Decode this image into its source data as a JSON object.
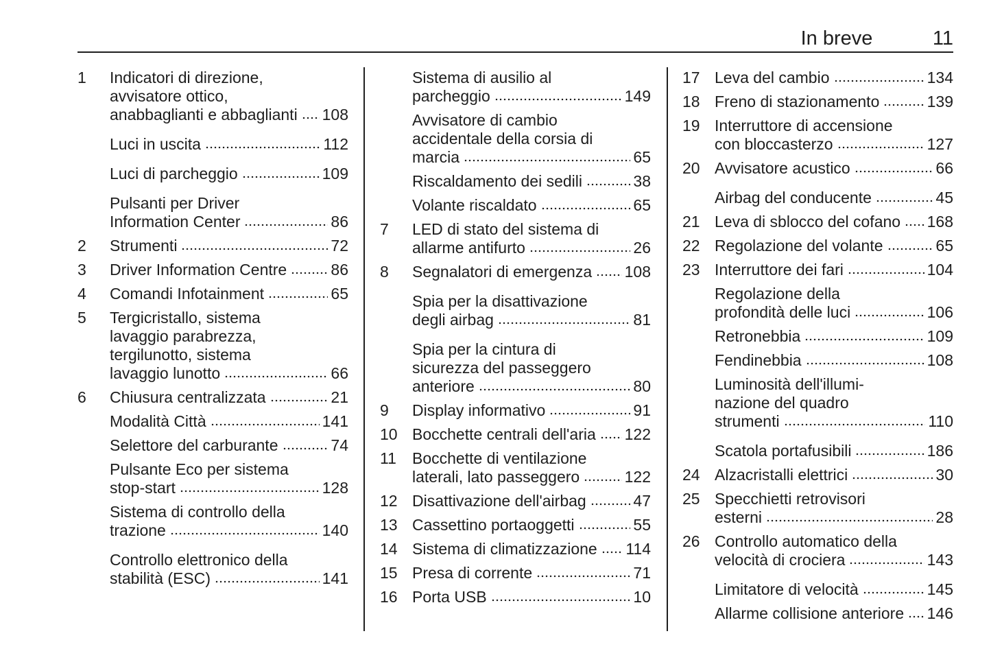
{
  "header": {
    "section": "In breve",
    "page": "11"
  },
  "columns": [
    {
      "entries": [
        {
          "num": "1",
          "lines": [
            "Indicatori di direzione,",
            "avvisatore ottico,",
            "anabbaglianti e abbaglianti"
          ],
          "page": "108"
        },
        {
          "lines": [
            "Luci in uscita"
          ],
          "page": "112"
        },
        {
          "lines": [
            "Luci di parcheggio"
          ],
          "page": "109"
        },
        {
          "lines": [
            "Pulsanti per Driver",
            "Information Center"
          ],
          "page": "86"
        },
        {
          "num": "2",
          "lines": [
            "Strumenti"
          ],
          "page": "72"
        },
        {
          "num": "3",
          "lines": [
            "Driver Information Centre"
          ],
          "page": "86"
        },
        {
          "num": "4",
          "lines": [
            "Comandi Infotainment"
          ],
          "page": "65"
        },
        {
          "num": "5",
          "lines": [
            "Tergicristallo, sistema",
            "lavaggio parabrezza,",
            "tergilunotto, sistema",
            "lavaggio lunotto"
          ],
          "page": "66"
        },
        {
          "num": "6",
          "lines": [
            "Chiusura centralizzata"
          ],
          "page": "21"
        },
        {
          "lines": [
            "Modalità Città"
          ],
          "page": "141"
        },
        {
          "lines": [
            "Selettore del carburante"
          ],
          "page": "74"
        },
        {
          "lines": [
            "Pulsante Eco per sistema",
            "stop-start"
          ],
          "page": "128"
        },
        {
          "lines": [
            "Sistema di controllo della",
            "trazione"
          ],
          "page": "140"
        },
        {
          "lines": [
            "Controllo elettronico della",
            "stabilità (ESC)"
          ],
          "page": "141"
        }
      ]
    },
    {
      "entries": [
        {
          "lines": [
            "Sistema di ausilio al",
            "parcheggio"
          ],
          "page": "149"
        },
        {
          "lines": [
            "Avvisatore di cambio",
            "accidentale della corsia di",
            "marcia"
          ],
          "page": "65"
        },
        {
          "lines": [
            "Riscaldamento dei sedili"
          ],
          "page": "38"
        },
        {
          "lines": [
            "Volante riscaldato"
          ],
          "page": "65"
        },
        {
          "num": "7",
          "lines": [
            "LED di stato del sistema di",
            "allarme antifurto"
          ],
          "page": "26"
        },
        {
          "num": "8",
          "lines": [
            "Segnalatori di emergenza"
          ],
          "page": "108"
        },
        {
          "lines": [
            "Spia per la disattivazione",
            "degli airbag"
          ],
          "page": "81"
        },
        {
          "lines": [
            "Spia per la cintura di",
            "sicurezza del passeggero",
            "anteriore"
          ],
          "page": "80"
        },
        {
          "num": "9",
          "lines": [
            "Display informativo"
          ],
          "page": "91"
        },
        {
          "num": "10",
          "lines": [
            "Bocchette centrali dell'aria"
          ],
          "page": "122"
        },
        {
          "num": "11",
          "lines": [
            "Bocchette di ventilazione",
            "laterali, lato passeggero"
          ],
          "page": "122"
        },
        {
          "num": "12",
          "lines": [
            "Disattivazione dell'airbag"
          ],
          "page": "47"
        },
        {
          "num": "13",
          "lines": [
            "Cassettino portaoggetti"
          ],
          "page": "55"
        },
        {
          "num": "14",
          "lines": [
            "Sistema di climatizzazione"
          ],
          "page": "114"
        },
        {
          "num": "15",
          "lines": [
            "Presa di corrente"
          ],
          "page": "71"
        },
        {
          "num": "16",
          "lines": [
            "Porta USB"
          ],
          "page": "10"
        }
      ]
    },
    {
      "entries": [
        {
          "num": "17",
          "lines": [
            "Leva del cambio"
          ],
          "page": "134"
        },
        {
          "num": "18",
          "lines": [
            "Freno di stazionamento"
          ],
          "page": "139"
        },
        {
          "num": "19",
          "lines": [
            "Interruttore di accensione",
            "con bloccasterzo"
          ],
          "page": "127"
        },
        {
          "num": "20",
          "lines": [
            "Avvisatore acustico"
          ],
          "page": "66"
        },
        {
          "lines": [
            "Airbag del conducente"
          ],
          "page": "45"
        },
        {
          "num": "21",
          "lines": [
            "Leva di sblocco del cofano"
          ],
          "page": "168"
        },
        {
          "num": "22",
          "lines": [
            "Regolazione del volante"
          ],
          "page": "65"
        },
        {
          "num": "23",
          "lines": [
            "Interruttore dei fari"
          ],
          "page": "104"
        },
        {
          "lines": [
            "Regolazione della",
            "profondità delle luci"
          ],
          "page": "106"
        },
        {
          "lines": [
            "Retronebbia"
          ],
          "page": "109"
        },
        {
          "lines": [
            "Fendinebbia"
          ],
          "page": "108"
        },
        {
          "lines": [
            "Luminosità dell'illumi-",
            "nazione del quadro",
            "strumenti"
          ],
          "page": "110"
        },
        {
          "lines": [
            "Scatola portafusibili"
          ],
          "page": "186"
        },
        {
          "num": "24",
          "lines": [
            "Alzacristalli elettrici"
          ],
          "page": "30"
        },
        {
          "num": "25",
          "lines": [
            "Specchietti retrovisori",
            "esterni"
          ],
          "page": "28"
        },
        {
          "num": "26",
          "lines": [
            "Controllo automatico della",
            "velocità di crociera"
          ],
          "page": "143"
        },
        {
          "lines": [
            "Limitatore di velocità"
          ],
          "page": "145"
        },
        {
          "lines": [
            "Allarme collisione anteriore"
          ],
          "page": "146"
        }
      ]
    }
  ]
}
